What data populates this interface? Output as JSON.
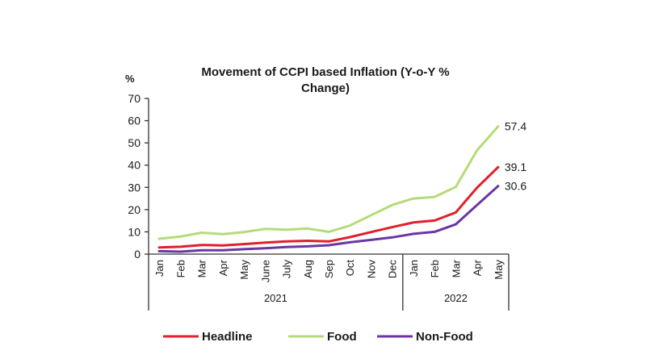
{
  "chart_data": {
    "type": "line",
    "title_lines": [
      "Movement of CCPI based Inflation (Y-o-Y %",
      "Change)"
    ],
    "ylabel": "%",
    "xlabel": "",
    "ylim": [
      0,
      70
    ],
    "yticks": [
      "0",
      "10",
      "20",
      "30",
      "40",
      "50",
      "60",
      "70"
    ],
    "ytick_values": [
      0,
      10,
      20,
      30,
      40,
      50,
      60,
      70
    ],
    "grid": false,
    "legend_position": "bottom",
    "categories": [
      "Jan",
      "Feb",
      "Mar",
      "Apr",
      "May",
      "June",
      "July",
      "Aug",
      "Sep",
      "Oct",
      "Nov",
      "Dec",
      "Jan",
      "Feb",
      "Mar",
      "Apr",
      "May"
    ],
    "year_groups": [
      {
        "label": "2021",
        "count": 12
      },
      {
        "label": "2022",
        "count": 5
      }
    ],
    "series": [
      {
        "name": "Headline",
        "color": "#e0202b",
        "values": [
          3.0,
          3.3,
          4.1,
          3.9,
          4.5,
          5.2,
          5.7,
          6.0,
          5.7,
          7.6,
          9.9,
          12.1,
          14.2,
          15.1,
          18.7,
          29.8,
          39.1
        ],
        "end_label": "39.1"
      },
      {
        "name": "Food",
        "color": "#b5db78",
        "values": [
          6.9,
          7.9,
          9.6,
          9.0,
          9.9,
          11.3,
          11.0,
          11.5,
          10.0,
          12.8,
          17.5,
          22.1,
          25.0,
          25.7,
          30.2,
          46.6,
          57.4
        ],
        "end_label": "57.4"
      },
      {
        "name": "Non-Food",
        "color": "#6a36a3",
        "values": [
          1.3,
          1.1,
          1.7,
          1.7,
          2.2,
          2.6,
          3.2,
          3.5,
          4.0,
          5.3,
          6.4,
          7.5,
          9.1,
          10.0,
          13.4,
          22.0,
          30.6
        ],
        "end_label": "30.6"
      }
    ],
    "legend": [
      {
        "name": "Headline",
        "color": "#e0202b"
      },
      {
        "name": "Food",
        "color": "#b5db78"
      },
      {
        "name": "Non-Food",
        "color": "#6a36a3"
      }
    ]
  }
}
